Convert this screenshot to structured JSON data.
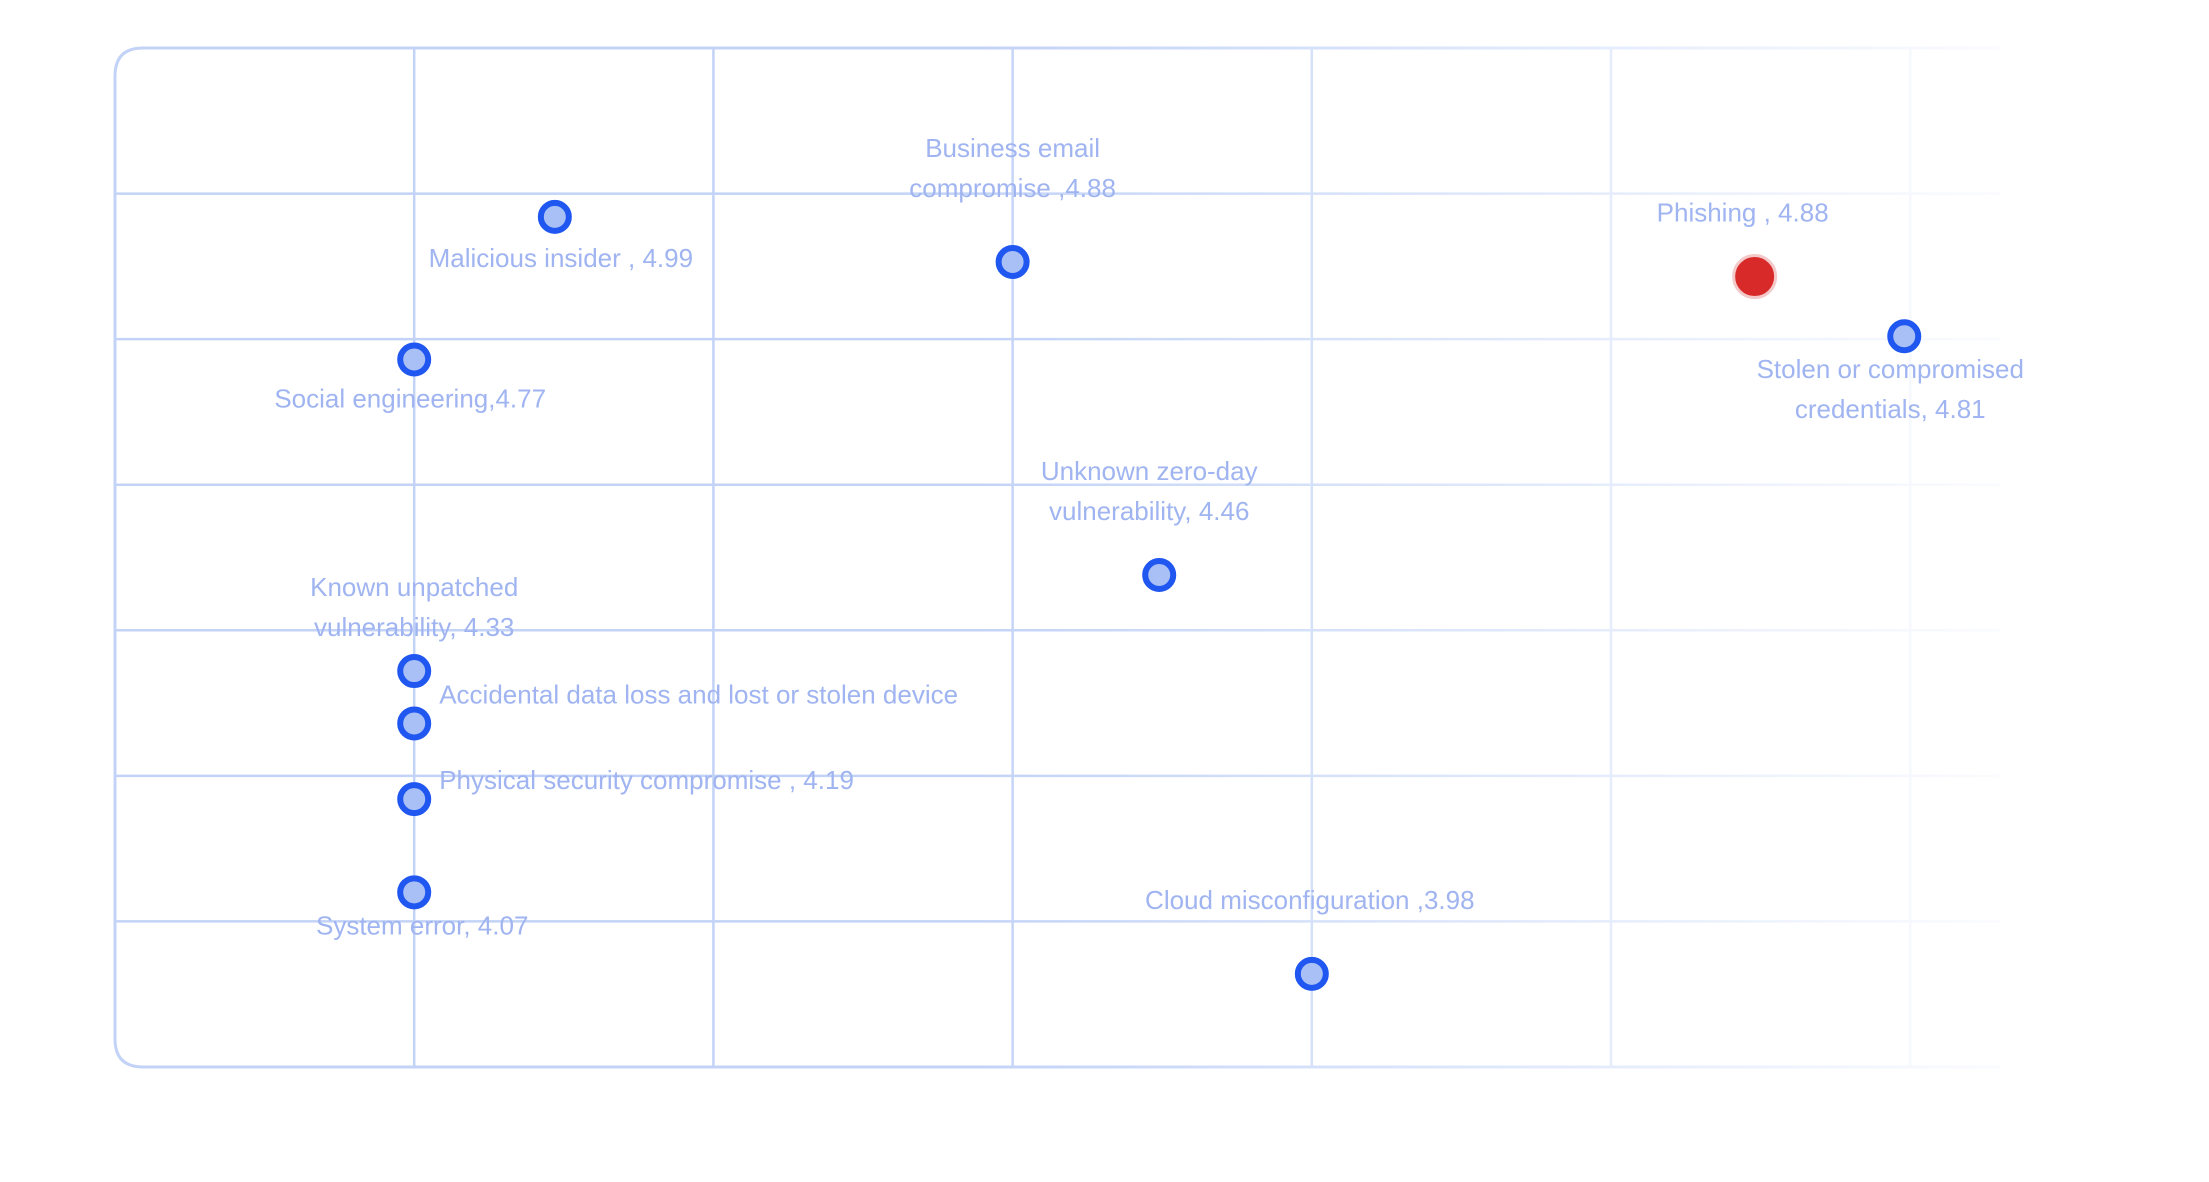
{
  "chart_data": {
    "type": "scatter",
    "title": "",
    "xlabel": "",
    "ylabel": "",
    "grid": true,
    "colors": {
      "grid": "#c3d3f7",
      "marker_fill": "#a9c0f6",
      "marker_stroke": "#1f57f0",
      "highlight": "#d92a2a",
      "label": "#9fb4f0"
    },
    "points": [
      {
        "label_lines": [
          "Malicious insider , 4.99"
        ],
        "x": 1.47,
        "y": 5.84,
        "highlight": false
      },
      {
        "label_lines": [
          "Business email",
          "compromise ,4.88"
        ],
        "x": 3.0,
        "y": 5.53,
        "highlight": false
      },
      {
        "label_lines": [
          "Phishing , 4.88"
        ],
        "x": 5.48,
        "y": 5.43,
        "highlight": true
      },
      {
        "label_lines": [
          "Stolen or compromised",
          "credentials, 4.81"
        ],
        "x": 5.98,
        "y": 5.02,
        "highlight": false
      },
      {
        "label_lines": [
          "Social engineering,4.77"
        ],
        "x": 1.0,
        "y": 4.86,
        "highlight": false
      },
      {
        "label_lines": [
          "Unknown zero-day",
          "vulnerability, 4.46"
        ],
        "x": 3.49,
        "y": 3.38,
        "highlight": false
      },
      {
        "label_lines": [
          "Known unpatched",
          "vulnerability, 4.33"
        ],
        "x": 1.0,
        "y": 2.72,
        "highlight": false
      },
      {
        "label_lines": [
          "Accidental data loss and lost or stolen device"
        ],
        "x": 1.0,
        "y": 2.36,
        "highlight": false
      },
      {
        "label_lines": [
          "Physical security compromise , 4.19"
        ],
        "x": 1.0,
        "y": 1.84,
        "highlight": false
      },
      {
        "label_lines": [
          "System error, 4.07"
        ],
        "x": 1.0,
        "y": 1.2,
        "highlight": false
      },
      {
        "label_lines": [
          "Cloud misconfiguration ,3.98"
        ],
        "x": 4.0,
        "y": 0.64,
        "highlight": false
      }
    ],
    "xlim": [
      0,
      6.3
    ],
    "ylim": [
      0,
      7
    ]
  }
}
